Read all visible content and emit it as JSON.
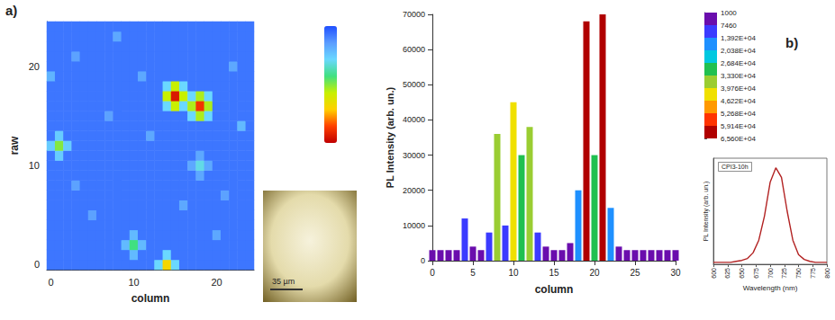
{
  "chart_data": [
    {
      "type": "heatmap",
      "panel": "a)",
      "x_label": "column",
      "y_label": "raw",
      "xticks": [
        0,
        10,
        20
      ],
      "yticks": [
        0,
        10,
        20
      ],
      "cells": [
        [
          5,
          5,
          5,
          5,
          5,
          5,
          5,
          5,
          5,
          5,
          5,
          5,
          5,
          20,
          48,
          20,
          5,
          5,
          5,
          5,
          5,
          5,
          5,
          5,
          5
        ],
        [
          5,
          5,
          5,
          5,
          5,
          5,
          5,
          5,
          5,
          5,
          15,
          5,
          5,
          5,
          20,
          5,
          5,
          5,
          5,
          5,
          5,
          5,
          5,
          5,
          5
        ],
        [
          5,
          5,
          5,
          5,
          5,
          5,
          5,
          5,
          5,
          15,
          30,
          15,
          5,
          5,
          5,
          5,
          5,
          5,
          5,
          5,
          5,
          5,
          5,
          5,
          5
        ],
        [
          5,
          5,
          5,
          5,
          5,
          5,
          5,
          5,
          5,
          5,
          15,
          5,
          5,
          5,
          5,
          5,
          5,
          5,
          5,
          5,
          12,
          5,
          5,
          5,
          5
        ],
        [
          5,
          5,
          5,
          5,
          5,
          5,
          5,
          5,
          5,
          5,
          5,
          5,
          5,
          5,
          5,
          5,
          5,
          5,
          5,
          5,
          5,
          5,
          5,
          5,
          5
        ],
        [
          5,
          5,
          5,
          5,
          5,
          11,
          5,
          5,
          5,
          5,
          5,
          5,
          5,
          5,
          5,
          5,
          5,
          5,
          5,
          5,
          5,
          5,
          5,
          5,
          5
        ],
        [
          5,
          5,
          5,
          5,
          5,
          5,
          5,
          5,
          5,
          5,
          5,
          5,
          5,
          5,
          5,
          5,
          12,
          5,
          5,
          5,
          5,
          5,
          5,
          5,
          5
        ],
        [
          5,
          5,
          5,
          5,
          5,
          5,
          5,
          5,
          5,
          5,
          5,
          5,
          5,
          5,
          5,
          5,
          5,
          5,
          5,
          5,
          5,
          11,
          5,
          5,
          5
        ],
        [
          5,
          5,
          5,
          11,
          5,
          5,
          5,
          5,
          5,
          5,
          5,
          5,
          5,
          5,
          5,
          5,
          5,
          5,
          5,
          5,
          5,
          5,
          5,
          5,
          5
        ],
        [
          5,
          5,
          5,
          5,
          5,
          5,
          5,
          5,
          5,
          5,
          5,
          5,
          5,
          5,
          5,
          5,
          5,
          5,
          12,
          5,
          5,
          5,
          5,
          5,
          5
        ],
        [
          5,
          5,
          5,
          5,
          5,
          5,
          5,
          5,
          5,
          5,
          5,
          5,
          5,
          5,
          5,
          5,
          5,
          12,
          22,
          12,
          5,
          5,
          5,
          5,
          5
        ],
        [
          5,
          18,
          5,
          5,
          5,
          5,
          5,
          5,
          5,
          5,
          5,
          5,
          5,
          5,
          5,
          5,
          5,
          5,
          12,
          5,
          5,
          5,
          5,
          5,
          5
        ],
        [
          18,
          35,
          18,
          5,
          5,
          5,
          5,
          5,
          5,
          5,
          5,
          5,
          5,
          5,
          5,
          5,
          5,
          5,
          5,
          5,
          5,
          5,
          5,
          5,
          5
        ],
        [
          5,
          18,
          5,
          5,
          5,
          5,
          5,
          5,
          5,
          5,
          5,
          5,
          12,
          5,
          5,
          5,
          5,
          5,
          5,
          5,
          5,
          5,
          5,
          5,
          5
        ],
        [
          5,
          5,
          5,
          5,
          5,
          5,
          5,
          5,
          5,
          5,
          5,
          5,
          5,
          5,
          5,
          5,
          5,
          5,
          5,
          5,
          5,
          5,
          5,
          15,
          5
        ],
        [
          5,
          5,
          5,
          5,
          5,
          5,
          5,
          11,
          5,
          5,
          5,
          5,
          5,
          5,
          5,
          5,
          5,
          20,
          38,
          20,
          5,
          5,
          5,
          5,
          5
        ],
        [
          5,
          5,
          5,
          5,
          5,
          5,
          5,
          5,
          5,
          5,
          5,
          5,
          5,
          5,
          20,
          40,
          20,
          38,
          62,
          38,
          5,
          5,
          5,
          5,
          5
        ],
        [
          5,
          5,
          5,
          5,
          5,
          5,
          5,
          5,
          5,
          5,
          5,
          5,
          5,
          5,
          40,
          66,
          40,
          20,
          38,
          20,
          5,
          5,
          5,
          5,
          5
        ],
        [
          5,
          5,
          5,
          5,
          5,
          5,
          5,
          5,
          5,
          5,
          5,
          5,
          5,
          5,
          20,
          40,
          20,
          5,
          5,
          5,
          5,
          5,
          5,
          5,
          5
        ],
        [
          14,
          5,
          5,
          5,
          5,
          5,
          5,
          5,
          5,
          5,
          5,
          12,
          5,
          5,
          5,
          5,
          5,
          5,
          5,
          5,
          5,
          5,
          5,
          5,
          5
        ],
        [
          5,
          5,
          5,
          5,
          5,
          5,
          5,
          5,
          5,
          5,
          5,
          5,
          5,
          5,
          5,
          5,
          5,
          5,
          5,
          5,
          5,
          5,
          12,
          5,
          5
        ],
        [
          5,
          5,
          5,
          11,
          5,
          5,
          5,
          5,
          5,
          5,
          5,
          5,
          5,
          5,
          5,
          5,
          5,
          5,
          5,
          5,
          5,
          5,
          5,
          5,
          5
        ],
        [
          5,
          5,
          5,
          5,
          5,
          5,
          5,
          5,
          5,
          5,
          5,
          5,
          5,
          5,
          5,
          5,
          5,
          5,
          5,
          5,
          5,
          5,
          5,
          5,
          5
        ],
        [
          5,
          5,
          5,
          5,
          5,
          5,
          5,
          5,
          12,
          5,
          5,
          5,
          5,
          5,
          5,
          5,
          5,
          5,
          5,
          5,
          5,
          5,
          5,
          5,
          5
        ],
        [
          5,
          5,
          5,
          5,
          5,
          5,
          5,
          5,
          5,
          5,
          5,
          5,
          5,
          5,
          5,
          5,
          5,
          5,
          5,
          5,
          5,
          5,
          5,
          5,
          5
        ]
      ],
      "color_range": [
        0,
        70
      ],
      "colors": [
        "#1f4fff",
        "#5a9cff",
        "#6ad8ff",
        "#40e080",
        "#c8f000",
        "#ffd000",
        "#ff4000",
        "#c00000"
      ],
      "inset_text": "35 µm"
    },
    {
      "type": "bar",
      "panel": "b)",
      "x_label": "column",
      "y_label": "PL Intensity (arb. un.)",
      "x": [
        0,
        1,
        2,
        3,
        4,
        5,
        6,
        7,
        8,
        9,
        10,
        11,
        12,
        13,
        14,
        15,
        16,
        17,
        18,
        19,
        20,
        21,
        22,
        23,
        24,
        25,
        26,
        27,
        28,
        29,
        30
      ],
      "values": [
        3000,
        3000,
        3000,
        3000,
        12000,
        4000,
        3000,
        8000,
        36000,
        10000,
        45000,
        30000,
        38000,
        8000,
        4000,
        3000,
        3000,
        5000,
        20000,
        68000,
        30000,
        70000,
        15000,
        4000,
        3000,
        3000,
        3000,
        3000,
        3000,
        3000,
        3000
      ],
      "xlim": [
        0,
        30
      ],
      "xticks": [
        0,
        5,
        10,
        15,
        20,
        25,
        30
      ],
      "ylim": [
        0,
        70000
      ],
      "yticks": [
        0,
        10000,
        20000,
        30000,
        40000,
        50000,
        60000,
        70000
      ],
      "color_bar": {
        "range": [
          1000,
          65600
        ],
        "ticks": [
          1000,
          7460,
          {
            "value": 13920,
            "label": "1,392E+04"
          },
          {
            "value": 20380,
            "label": "2,038E+04"
          },
          {
            "value": 26840,
            "label": "2,684E+04"
          },
          {
            "value": 33300,
            "label": "3,330E+04"
          },
          {
            "value": 39760,
            "label": "3,976E+04"
          },
          {
            "value": 46220,
            "label": "4,622E+04"
          },
          {
            "value": 52680,
            "label": "5,268E+04"
          },
          {
            "value": 59140,
            "label": "5,914E+04"
          },
          {
            "value": 65600,
            "label": "6,560E+04"
          }
        ],
        "colors": [
          "#6a0dad",
          "#3b3bff",
          "#1e90ff",
          "#00c8e0",
          "#20c050",
          "#9acd32",
          "#f0e000",
          "#ff9900",
          "#ff3300",
          "#b00000"
        ]
      }
    },
    {
      "type": "line",
      "title": "CPI3-10h",
      "x_label": "Wavelength (nm)",
      "y_label": "PL Intensity (arb. un.)",
      "x": [
        600,
        610,
        620,
        630,
        640,
        650,
        660,
        670,
        680,
        690,
        700,
        710,
        720,
        730,
        740,
        750,
        760,
        770,
        780,
        790,
        800
      ],
      "values": [
        0.02,
        0.02,
        0.02,
        0.02,
        0.03,
        0.04,
        0.06,
        0.12,
        0.25,
        0.5,
        0.85,
        1.0,
        0.9,
        0.55,
        0.25,
        0.1,
        0.05,
        0.03,
        0.02,
        0.02,
        0.02
      ],
      "xlim": [
        600,
        800
      ],
      "xticks": [
        600,
        625,
        650,
        675,
        700,
        725,
        750,
        775,
        800
      ],
      "ylim": [
        0,
        1.1
      ],
      "tick_labels": "x",
      "color": "#b22222"
    }
  ]
}
